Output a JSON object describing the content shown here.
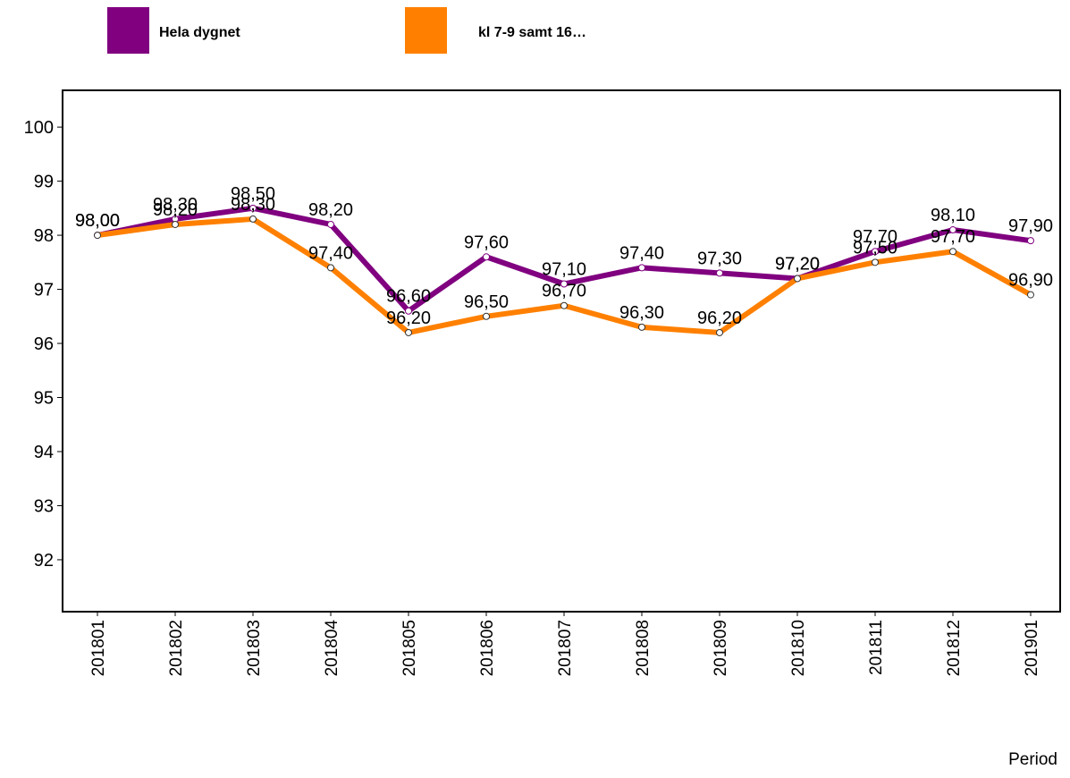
{
  "chart_data": {
    "type": "line",
    "categories": [
      "201801",
      "201802",
      "201803",
      "201804",
      "201805",
      "201806",
      "201807",
      "201808",
      "201809",
      "201810",
      "201811",
      "201812",
      "201901"
    ],
    "x_label": "Period",
    "ylim": [
      91.04,
      100.68
    ],
    "yticks": [
      92,
      93,
      94,
      95,
      96,
      97,
      98,
      99,
      100
    ],
    "series": [
      {
        "name": "Hela dygnet",
        "color": "#800080",
        "values": [
          98.0,
          98.3,
          98.5,
          98.2,
          96.6,
          97.6,
          97.1,
          97.4,
          97.3,
          97.2,
          97.7,
          98.1,
          97.9
        ],
        "value_labels": [
          "98,00",
          "98,30",
          "98,50",
          "98,20",
          "96,60",
          "97,60",
          "97,10",
          "97,40",
          "97,30",
          "97,20",
          "97,70",
          "98,10",
          "97,90"
        ]
      },
      {
        "name": "kl 7-9 samt 16…",
        "color": "#ff8000",
        "values": [
          98.0,
          98.2,
          98.3,
          97.4,
          96.2,
          96.5,
          96.7,
          96.3,
          96.2,
          97.2,
          97.5,
          97.7,
          96.9
        ],
        "value_labels": [
          "98,00",
          "98,20",
          "98,30",
          "97,40",
          "96,20",
          "96,50",
          "96,70",
          "96,30",
          "96,20",
          "97,20",
          "97,50",
          "97,70",
          "96,90"
        ]
      }
    ]
  }
}
